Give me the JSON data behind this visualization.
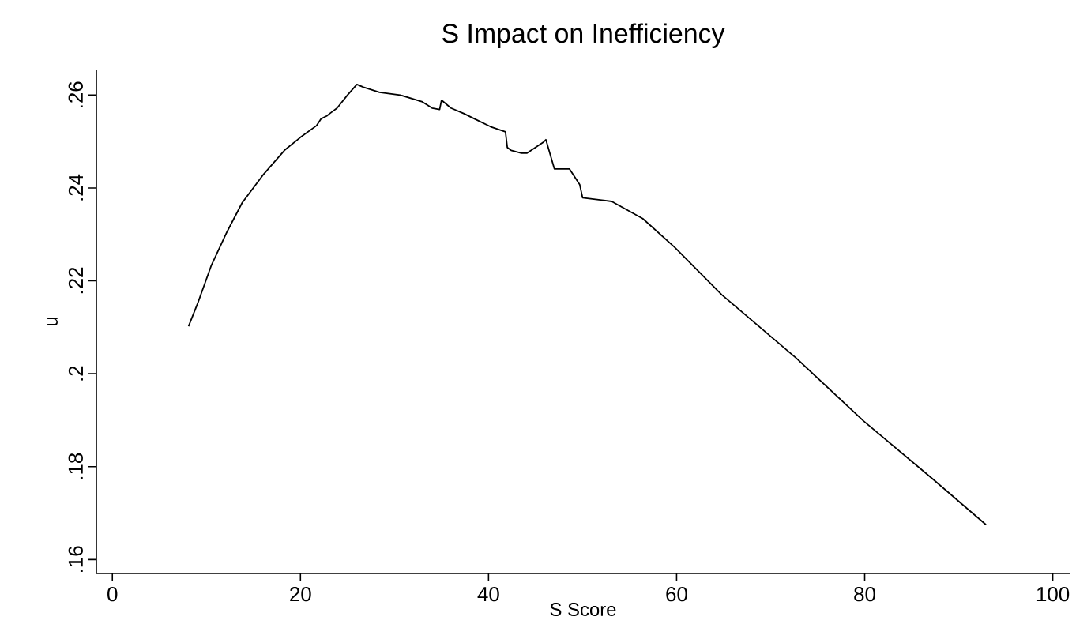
{
  "chart_data": {
    "type": "line",
    "title": "S Impact on Inefficiency",
    "xlabel": "S Score",
    "ylabel": "u",
    "xlim": [
      -1.7,
      101.8
    ],
    "ylim": [
      0.157,
      0.2655
    ],
    "xticks": [
      0,
      20,
      40,
      60,
      80,
      100
    ],
    "yticks": [
      {
        "value": 0.16,
        "label": ".16"
      },
      {
        "value": 0.18,
        "label": ".18"
      },
      {
        "value": 0.2,
        "label": ".2"
      },
      {
        "value": 0.22,
        "label": ".22"
      },
      {
        "value": 0.24,
        "label": ".24"
      },
      {
        "value": 0.26,
        "label": ".26"
      }
    ],
    "grid": false,
    "marker": "none",
    "line_style": "solid",
    "series": [
      {
        "color": "#000000",
        "x": [
          8.1,
          9.1,
          10.5,
          12.2,
          13.8,
          16.1,
          18.3,
          20.0,
          21.7,
          22.2,
          22.8,
          23.1,
          23.9,
          25.0,
          26.0,
          26.7,
          28.4,
          30.6,
          32.9,
          34.0,
          34.8,
          35.0,
          36.0,
          37.4,
          38.5,
          40.2,
          41.8,
          42.0,
          42.4,
          43.5,
          44.1,
          45.8,
          46.1,
          47.0,
          48.6,
          49.7,
          50.0,
          53.1,
          56.4,
          59.8,
          64.8,
          72.7,
          79.9,
          87.2,
          92.9
        ],
        "values": [
          0.2102,
          0.2153,
          0.2232,
          0.2306,
          0.2368,
          0.243,
          0.2481,
          0.2509,
          0.2534,
          0.2549,
          0.2555,
          0.256,
          0.2572,
          0.26,
          0.2623,
          0.2617,
          0.2606,
          0.26,
          0.2586,
          0.2572,
          0.2569,
          0.2589,
          0.2572,
          0.256,
          0.2549,
          0.2532,
          0.2521,
          0.2487,
          0.2481,
          0.2475,
          0.2475,
          0.2498,
          0.2504,
          0.2441,
          0.2441,
          0.2407,
          0.2379,
          0.2371,
          0.2334,
          0.2272,
          0.217,
          0.2034,
          0.1898,
          0.1774,
          0.1675
        ]
      }
    ]
  }
}
